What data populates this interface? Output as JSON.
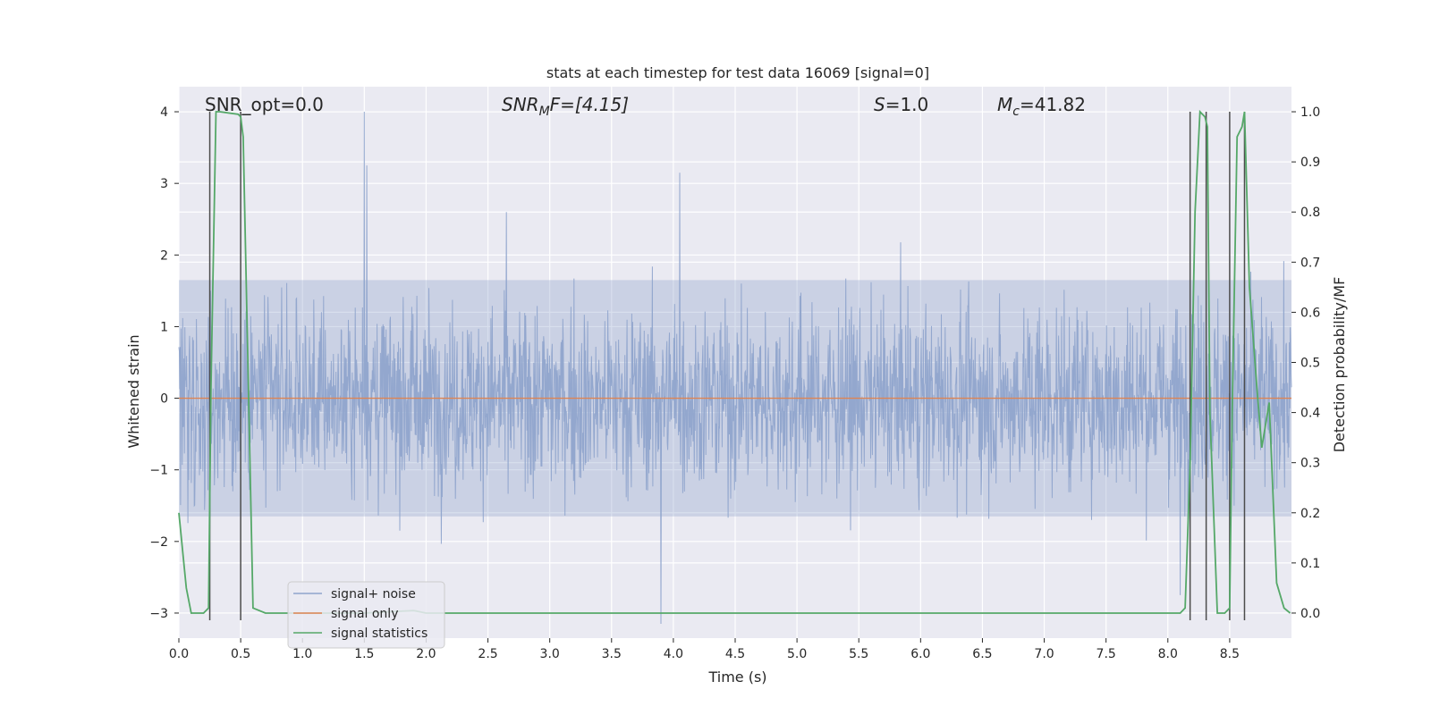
{
  "chart_data": {
    "type": "line",
    "title": "stats at each timestep for test data 16069 [signal=0]",
    "xlabel": "Time (s)",
    "ylabel_left": "Whitened strain",
    "ylabel_right": "Detection probability/MF",
    "xlim": [
      0,
      9.0
    ],
    "ylim_left": [
      -3.35,
      4.35
    ],
    "ylim_right": [
      -0.05,
      1.05
    ],
    "x_ticks": [
      0.0,
      0.5,
      1.0,
      1.5,
      2.0,
      2.5,
      3.0,
      3.5,
      4.0,
      4.5,
      5.0,
      5.5,
      6.0,
      6.5,
      7.0,
      7.5,
      8.0,
      8.5
    ],
    "x_tick_labels": [
      "0.0",
      "0.5",
      "1.0",
      "1.5",
      "2.0",
      "2.5",
      "3.0",
      "3.5",
      "4.0",
      "4.5",
      "5.0",
      "5.5",
      "6.0",
      "6.5",
      "7.0",
      "7.5",
      "8.0",
      "8.5"
    ],
    "y_ticks_left": [
      4,
      3,
      2,
      1,
      0,
      -1,
      -2,
      -3
    ],
    "y_tick_labels_left": [
      "4",
      "3",
      "2",
      "1",
      "0",
      "−1",
      "−2",
      "−3"
    ],
    "y_ticks_right": [
      1.0,
      0.9,
      0.8,
      0.7,
      0.6,
      0.5,
      0.4,
      0.3,
      0.2,
      0.1,
      0.0
    ],
    "y_tick_labels_right": [
      "1.0",
      "0.9",
      "0.8",
      "0.7",
      "0.6",
      "0.5",
      "0.4",
      "0.3",
      "0.2",
      "0.1",
      "0.0"
    ],
    "annotations": {
      "snr_opt": "SNR_opt=0.0",
      "snr_mf_base": "SNR",
      "snr_mf_sub": "M",
      "snr_mf_rest": "F=[4.15]",
      "s_base": "S",
      "s_rest": "=1.0",
      "mc_base": "M",
      "mc_sub": "c",
      "mc_rest": "=41.82"
    },
    "legend": {
      "location": "lower-left",
      "entries": [
        "signal+ noise",
        "signal only",
        "signal statistics"
      ]
    },
    "series": [
      {
        "name": "signal+ noise",
        "axis": "left",
        "color": "#8fa4cc",
        "noise_band": [
          -1.65,
          1.65
        ],
        "x": [
          0.0,
          9.0
        ],
        "notable_peaks": [
          {
            "x": 1.5,
            "y": 4.0
          },
          {
            "x": 4.05,
            "y": 3.15
          },
          {
            "x": 3.9,
            "y": -3.15
          },
          {
            "x": 1.52,
            "y": 3.25
          },
          {
            "x": 2.65,
            "y": 2.6
          },
          {
            "x": 8.1,
            "y": -2.75
          }
        ]
      },
      {
        "name": "signal only",
        "axis": "left",
        "color": "#dd8452",
        "x": [
          0.0,
          9.0
        ],
        "y": [
          0.0,
          0.0
        ]
      },
      {
        "name": "signal statistics",
        "axis": "right",
        "color": "#55a868",
        "x": [
          0.0,
          0.06,
          0.1,
          0.2,
          0.24,
          0.26,
          0.3,
          0.33,
          0.48,
          0.5,
          0.52,
          0.6,
          0.7,
          1.0,
          1.5,
          1.9,
          2.0,
          3.0,
          4.0,
          5.0,
          6.0,
          7.0,
          8.0,
          8.1,
          8.14,
          8.18,
          8.22,
          8.26,
          8.3,
          8.32,
          8.34,
          8.4,
          8.46,
          8.5,
          8.52,
          8.56,
          8.6,
          8.62,
          8.66,
          8.72,
          8.76,
          8.82,
          8.88,
          8.94,
          8.99
        ],
        "y": [
          0.2,
          0.05,
          0.0,
          0.0,
          0.01,
          0.45,
          1.0,
          1.0,
          0.995,
          0.99,
          0.95,
          0.01,
          0.0,
          0.0,
          0.0,
          0.005,
          0.0,
          0.0,
          0.0,
          0.0,
          0.0,
          0.0,
          0.0,
          0.0,
          0.01,
          0.3,
          0.8,
          1.0,
          0.99,
          0.97,
          0.4,
          0.0,
          0.0,
          0.01,
          0.4,
          0.95,
          0.97,
          1.0,
          0.65,
          0.45,
          0.33,
          0.42,
          0.06,
          0.01,
          0.0
        ]
      }
    ],
    "vertical_markers": {
      "color": "#4c4c4c",
      "x": [
        0.25,
        0.5,
        8.18,
        8.31,
        8.5,
        8.62
      ],
      "y_from": -3.1,
      "y_to": 4.0
    }
  }
}
